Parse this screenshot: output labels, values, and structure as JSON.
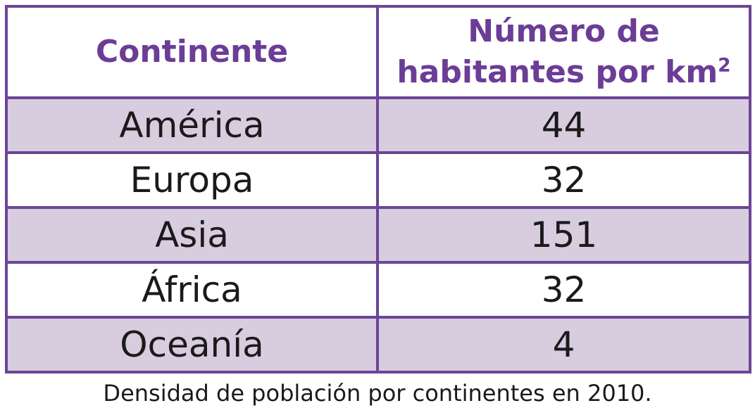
{
  "table": {
    "headers": {
      "continent": "Continente",
      "density_line1": "Número de",
      "density_line2": "habitantes por km",
      "density_sup": "2"
    },
    "rows": [
      {
        "continent": "América",
        "density": "44"
      },
      {
        "continent": "Europa",
        "density": "32"
      },
      {
        "continent": "Asia",
        "density": "151"
      },
      {
        "continent": "África",
        "density": "32"
      },
      {
        "continent": "Oceanía",
        "density": "4"
      }
    ]
  },
  "caption": "Densidad de población por continentes en 2010.",
  "colors": {
    "border": "#6b4596",
    "header_text": "#6b3d96",
    "shaded_row": "#d8ccdf",
    "body_text": "#1a1a1a"
  }
}
